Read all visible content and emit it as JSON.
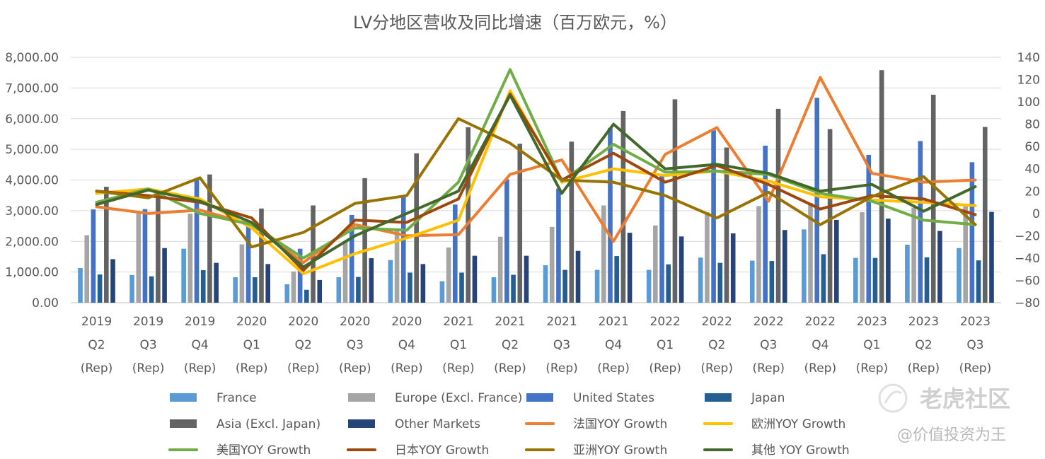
{
  "watermark": {
    "brand": "老虎社区",
    "user": "@价值投资为王"
  },
  "chart_data": {
    "type": "bar+line",
    "title": "LV分地区营收及同比增速（百万欧元，%）",
    "categories": [
      [
        "2019",
        "Q2",
        "(Rep)"
      ],
      [
        "2019",
        "Q3",
        "(Rep)"
      ],
      [
        "2019",
        "Q4",
        "(Rep)"
      ],
      [
        "2020",
        "Q1",
        "(Rep)"
      ],
      [
        "2020",
        "Q2",
        "(Rep)"
      ],
      [
        "2020",
        "Q3",
        "(Rep)"
      ],
      [
        "2020",
        "Q4",
        "(Rep)"
      ],
      [
        "2021",
        "Q1",
        "(Rep)"
      ],
      [
        "2021",
        "Q2",
        "(Rep)"
      ],
      [
        "2021",
        "Q3",
        "(Rep)"
      ],
      [
        "2021",
        "Q4",
        "(Rep)"
      ],
      [
        "2022",
        "Q1",
        "(Rep)"
      ],
      [
        "2022",
        "Q2",
        "(Rep)"
      ],
      [
        "2022",
        "Q3",
        "(Rep)"
      ],
      [
        "2022",
        "Q4",
        "(Rep)"
      ],
      [
        "2023",
        "Q1",
        "(Rep)"
      ],
      [
        "2023",
        "Q2",
        "(Rep)"
      ],
      [
        "2023",
        "Q3",
        "(Rep)"
      ]
    ],
    "left_axis": {
      "min": 0,
      "max": 8000,
      "step": 1000,
      "tick_labels": [
        "0.00",
        "1,000.00",
        "2,000.00",
        "3,000.00",
        "4,000.00",
        "5,000.00",
        "6,000.00",
        "7,000.00",
        "8,000.00"
      ]
    },
    "right_axis": {
      "min": -80,
      "max": 140,
      "step": 20,
      "tick_labels": [
        "−80",
        "−60",
        "−40",
        "−20",
        "0",
        "20",
        "40",
        "60",
        "80",
        "100",
        "120",
        "140"
      ]
    },
    "bar_series": [
      {
        "name": "France",
        "color": "#5b9bd5",
        "values": [
          1130,
          900,
          1760,
          830,
          600,
          830,
          1390,
          700,
          830,
          1220,
          1070,
          1070,
          1470,
          1370,
          2390,
          1460,
          1890,
          1780
        ]
      },
      {
        "name": "Europe (Excl. France)",
        "color": "#a5a5a5",
        "values": [
          2200,
          2950,
          2900,
          1900,
          1020,
          1980,
          2350,
          1800,
          2150,
          2470,
          3170,
          2520,
          2950,
          3150,
          3250,
          2950,
          3100,
          3150
        ]
      },
      {
        "name": "United States",
        "color": "#4472c4",
        "values": [
          3040,
          3050,
          4050,
          2500,
          1760,
          2860,
          3470,
          3200,
          4020,
          3720,
          5700,
          4200,
          5620,
          5120,
          6680,
          4820,
          5270,
          4580
        ]
      },
      {
        "name": "Japan",
        "color": "#255e91",
        "values": [
          920,
          860,
          1060,
          830,
          420,
          840,
          980,
          980,
          910,
          1070,
          1520,
          1250,
          1300,
          1360,
          1580,
          1460,
          1480,
          1380
        ]
      },
      {
        "name": "Asia (Excl. Japan)",
        "color": "#636363",
        "values": [
          3780,
          3500,
          4180,
          3070,
          3170,
          4060,
          4870,
          5720,
          5180,
          5250,
          6250,
          6630,
          5060,
          6320,
          5660,
          7580,
          6780,
          5730
        ]
      },
      {
        "name": "Other Markets",
        "color": "#264478",
        "values": [
          1420,
          1780,
          1300,
          1260,
          740,
          1450,
          1260,
          1530,
          1530,
          1690,
          2280,
          2160,
          2260,
          2370,
          2700,
          2740,
          2340,
          2960
        ]
      }
    ],
    "line_series": [
      {
        "name": "法国YOY Growth",
        "color": "#ed7d31",
        "values": [
          6,
          0,
          3,
          -10,
          -44,
          -10,
          -20,
          -19,
          35,
          48,
          -25,
          53,
          77,
          11,
          122,
          36,
          28,
          30
        ]
      },
      {
        "name": "欧洲YOY Growth",
        "color": "#ffc000",
        "values": [
          18,
          22,
          13,
          -13,
          -54,
          -36,
          -22,
          -6,
          110,
          28,
          40,
          34,
          38,
          29,
          15,
          12,
          10,
          7
        ]
      },
      {
        "name": "美国YOY Growth",
        "color": "#70ad47",
        "values": [
          10,
          22,
          0,
          -10,
          -40,
          -13,
          -15,
          28,
          129,
          29,
          62,
          37,
          38,
          35,
          18,
          11,
          -6,
          -10
        ]
      },
      {
        "name": "日本YOY Growth",
        "color": "#9e480e",
        "values": [
          20,
          16,
          10,
          -4,
          -51,
          -6,
          -8,
          13,
          107,
          30,
          54,
          28,
          43,
          26,
          4,
          16,
          13,
          -1
        ]
      },
      {
        "name": "亚洲YOY Growth",
        "color": "#997300",
        "values": [
          20,
          14,
          32,
          -30,
          -17,
          9,
          16,
          85,
          63,
          30,
          28,
          16,
          -4,
          19,
          -10,
          15,
          33,
          -10
        ]
      },
      {
        "name": "其他 YOY Growth",
        "color": "#43682b",
        "values": [
          8,
          21,
          11,
          -8,
          -48,
          -20,
          0,
          20,
          106,
          18,
          80,
          40,
          44,
          36,
          20,
          26,
          2,
          24
        ]
      }
    ],
    "legend_position": "bottom"
  }
}
